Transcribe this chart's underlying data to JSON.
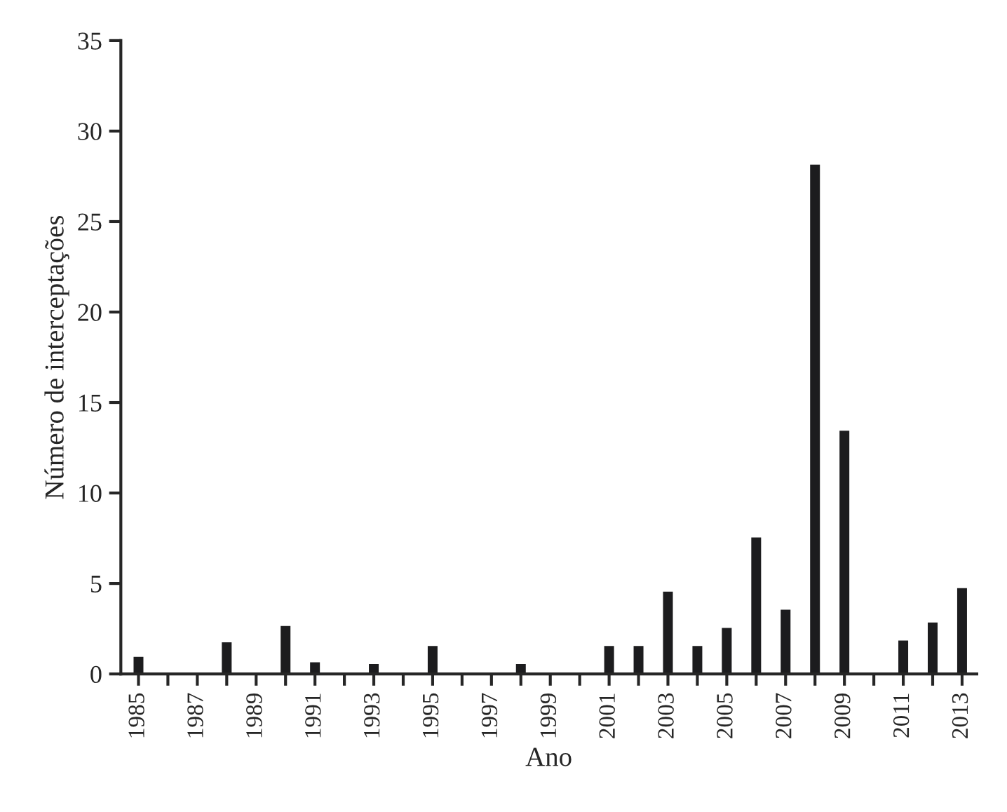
{
  "chart_data": {
    "type": "bar",
    "xlabel": "Ano",
    "ylabel": "Número de interceptações",
    "categories": [
      "1985",
      null,
      "1987",
      null,
      "1989",
      null,
      "1991",
      null,
      "1993",
      null,
      "1995",
      null,
      "1997",
      null,
      "1999",
      null,
      "2001",
      null,
      "2003",
      null,
      "2005",
      null,
      "2007",
      null,
      "2009",
      null,
      "2011",
      null,
      "2013"
    ],
    "values": [
      1.0,
      null,
      null,
      1.8,
      null,
      2.7,
      0.7,
      null,
      0.6,
      null,
      1.6,
      null,
      null,
      0.6,
      null,
      null,
      1.6,
      1.6,
      4.6,
      1.6,
      2.6,
      7.6,
      3.6,
      28.2,
      13.5,
      null,
      1.9,
      2.9,
      4.8
    ],
    "color": "#1c1c1e",
    "ylim": [
      0,
      35
    ],
    "yticks": [
      0,
      5,
      10,
      15,
      20,
      25,
      30,
      35
    ],
    "grid": false
  }
}
